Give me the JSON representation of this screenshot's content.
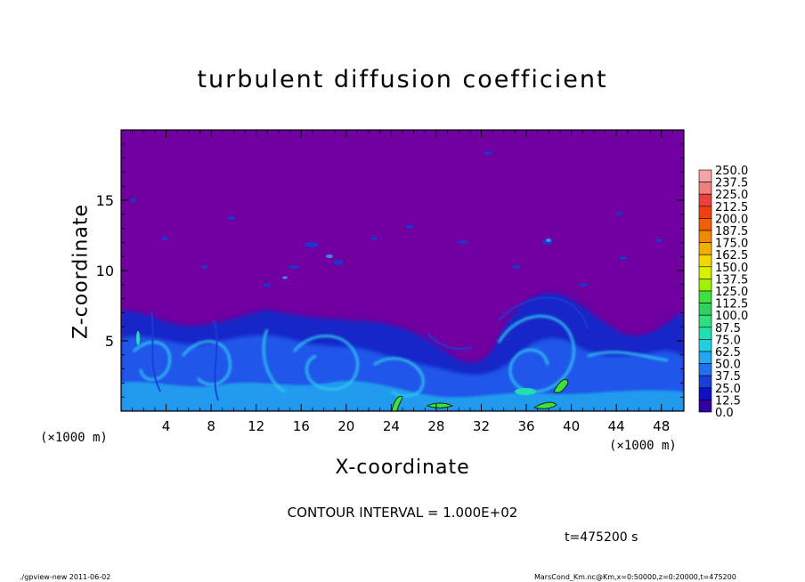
{
  "chart_data": {
    "type": "heatmap",
    "title": "turbulent diffusion coefficient",
    "xlabel": "X-coordinate",
    "ylabel": "Z-coordinate",
    "x_unit_label": "(×1000 m)",
    "xlim": [
      0,
      50
    ],
    "ylim": [
      0,
      20
    ],
    "x_ticks": [
      4,
      8,
      12,
      16,
      20,
      24,
      28,
      32,
      36,
      40,
      44,
      48
    ],
    "y_ticks": [
      5,
      10,
      15
    ],
    "colorbar": {
      "levels": [
        "250.0",
        "237.5",
        "225.0",
        "212.5",
        "200.0",
        "187.5",
        "175.0",
        "162.5",
        "150.0",
        "137.5",
        "125.0",
        "112.5",
        "100.0",
        "87.5",
        "75.0",
        "62.5",
        "50.0",
        "37.5",
        "25.0",
        "12.5",
        "0.0"
      ],
      "colors": [
        "#f4a6a6",
        "#f08080",
        "#ec4040",
        "#f04010",
        "#f06000",
        "#f08800",
        "#f0b000",
        "#f0d800",
        "#d8f000",
        "#a0f000",
        "#40e040",
        "#30d060",
        "#30e080",
        "#20e0b0",
        "#20d0e0",
        "#20a8f0",
        "#2070f0",
        "#1840d8",
        "#1010c0",
        "#3000a0",
        "#7000a0"
      ]
    },
    "field_description_levels": {
      "background": "0.0",
      "max_near_surface": "100.0"
    },
    "contour_interval_text": "CONTOUR INTERVAL = 1.000E+02",
    "time_text": "t=475200 s",
    "footer_left": "./gpview-new  2011-06-02",
    "footer_right": "MarsCond_Km.nc@Km,x=0:50000,z=0:20000,t=475200",
    "colors": {
      "background_field": "#7000a0",
      "low": "#1010c0",
      "mid": "#2070f0",
      "high": "#20d0e0",
      "peak": "#40e040"
    }
  }
}
